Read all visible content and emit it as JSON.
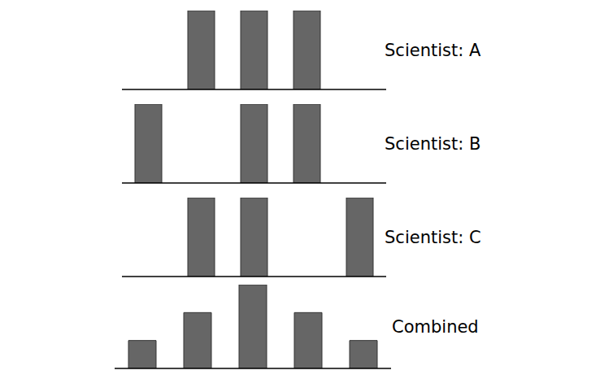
{
  "chart_data": [
    {
      "type": "bar",
      "title": "Scientist: A",
      "categories": [
        null,
        null,
        null,
        null,
        null
      ],
      "values": [
        0,
        1,
        1,
        1,
        0
      ],
      "color": "#666666",
      "ylim": [
        0,
        1
      ],
      "tick_labels": false
    },
    {
      "type": "bar",
      "title": "Scientist: B",
      "categories": [
        null,
        null,
        null,
        null,
        null
      ],
      "values": [
        1,
        0,
        1,
        1,
        0
      ],
      "color": "#666666",
      "ylim": [
        0,
        1
      ],
      "tick_labels": false
    },
    {
      "type": "bar",
      "title": "Scientist: C",
      "categories": [
        null,
        null,
        null,
        null,
        null
      ],
      "values": [
        0,
        1,
        1,
        0,
        1
      ],
      "color": "#666666",
      "ylim": [
        0,
        1
      ],
      "tick_labels": false
    },
    {
      "type": "bar",
      "title": "Combined",
      "categories": [
        null,
        null,
        null,
        null,
        null
      ],
      "values": [
        1,
        2,
        3,
        2,
        1
      ],
      "color": "#666666",
      "ylim": [
        0,
        3
      ],
      "tick_labels": false
    }
  ]
}
